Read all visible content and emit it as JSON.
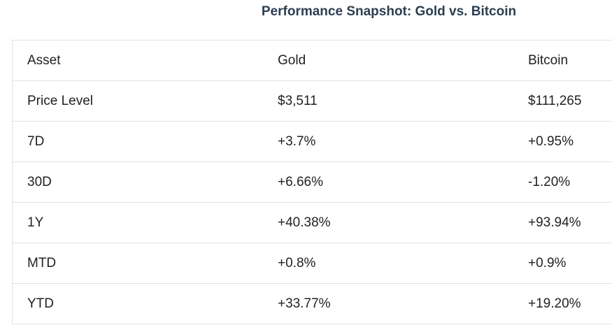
{
  "header": {
    "title": "Performance Snapshot: Gold vs. Bitcoin"
  },
  "table": {
    "columns": [
      "Asset",
      "Gold",
      "Bitcoin"
    ],
    "rows": [
      [
        "Price Level",
        "$3,511",
        "$111,265"
      ],
      [
        "7D",
        "+3.7%",
        "+0.95%"
      ],
      [
        "30D",
        "+6.66%",
        "-1.20%"
      ],
      [
        "1Y",
        "+40.38%",
        "+93.94%"
      ],
      [
        "MTD",
        "+0.8%",
        "+0.9%"
      ],
      [
        "YTD",
        "+33.77%",
        "+19.20%"
      ]
    ]
  }
}
